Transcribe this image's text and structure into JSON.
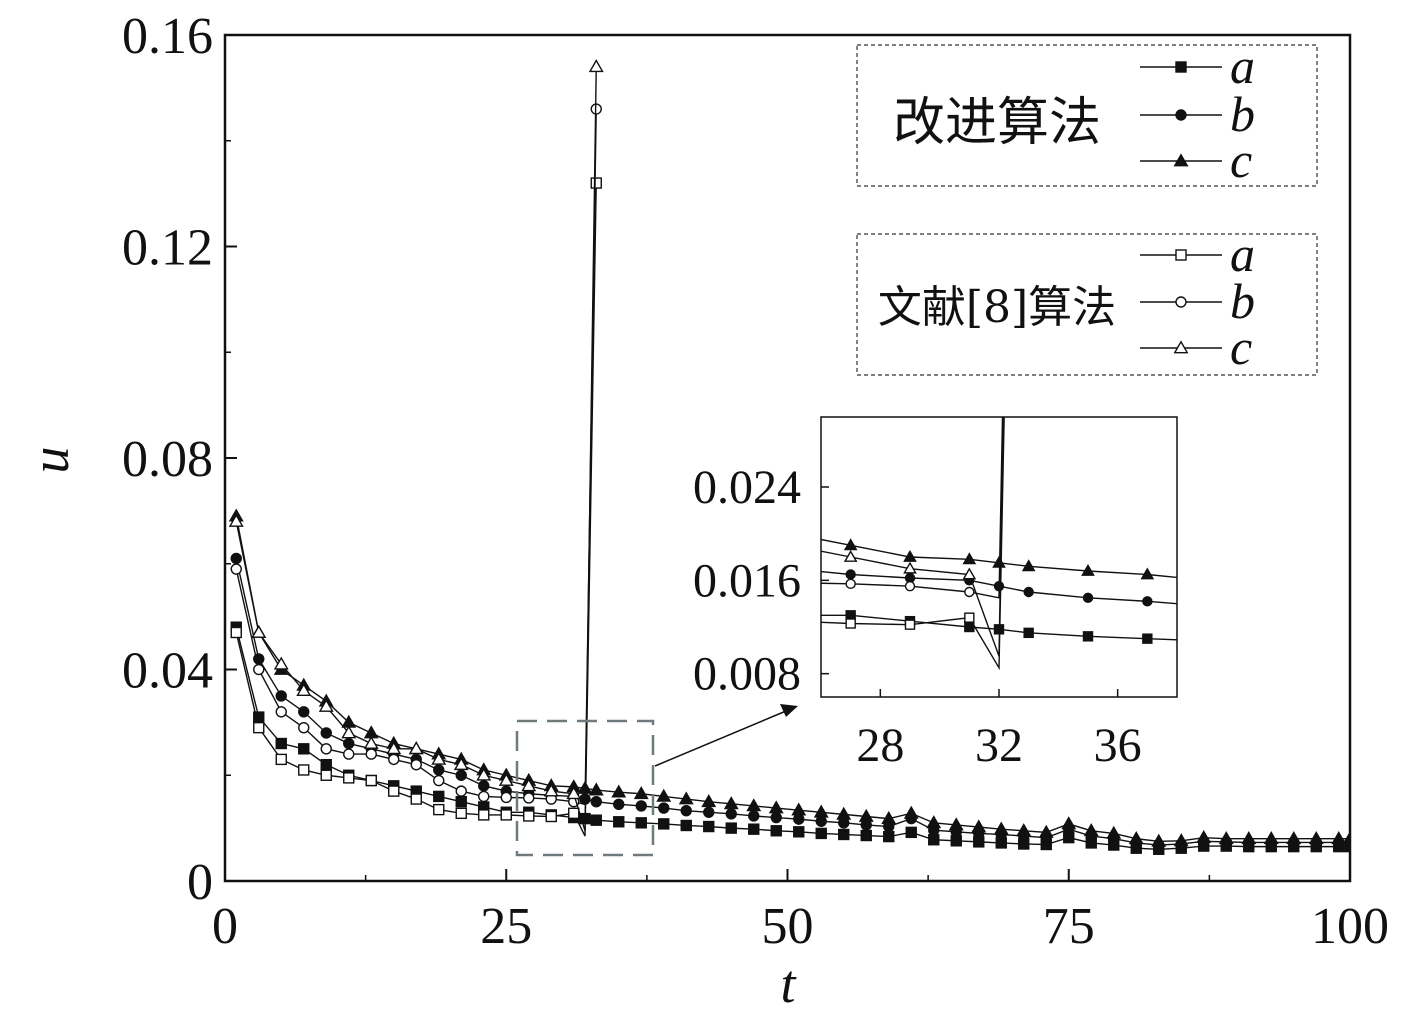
{
  "chart_data": {
    "type": "line",
    "xlabel": "t",
    "ylabel": "u",
    "xlim": [
      0,
      100
    ],
    "ylim": [
      0,
      0.16
    ],
    "x_ticks": [
      "0",
      "25",
      "50",
      "75",
      "100"
    ],
    "y_ticks": [
      "0",
      "0.04",
      "0.08",
      "0.12",
      "0.16"
    ],
    "x": [
      1,
      3,
      5,
      7,
      9,
      11,
      13,
      15,
      17,
      19,
      21,
      23,
      25,
      27,
      29,
      31,
      32,
      33,
      35,
      37,
      39,
      41,
      43,
      45,
      47,
      49,
      51,
      53,
      55,
      57,
      59,
      61,
      63,
      65,
      67,
      69,
      71,
      73,
      75,
      77,
      79,
      81,
      83,
      85,
      87,
      89,
      91,
      93,
      95,
      97,
      99,
      100
    ],
    "series": [
      {
        "name": "a",
        "group": "改进算法",
        "marker": "filled-square",
        "values": [
          0.048,
          0.031,
          0.026,
          0.025,
          0.022,
          0.02,
          0.019,
          0.018,
          0.017,
          0.016,
          0.015,
          0.014,
          0.013,
          0.013,
          0.0125,
          0.012,
          0.0118,
          0.0115,
          0.0112,
          0.011,
          0.0108,
          0.0105,
          0.0103,
          0.01,
          0.0098,
          0.0095,
          0.0093,
          0.009,
          0.0088,
          0.0086,
          0.0084,
          0.0092,
          0.0078,
          0.0076,
          0.0074,
          0.0072,
          0.007,
          0.0069,
          0.0082,
          0.0072,
          0.0068,
          0.0062,
          0.006,
          0.0062,
          0.0066,
          0.0066,
          0.0065,
          0.0065,
          0.0065,
          0.0065,
          0.0065,
          0.0065
        ]
      },
      {
        "name": "b",
        "group": "改进算法",
        "marker": "filled-circle",
        "values": [
          0.061,
          0.042,
          0.035,
          0.032,
          0.028,
          0.026,
          0.025,
          0.024,
          0.023,
          0.021,
          0.02,
          0.018,
          0.017,
          0.0165,
          0.0162,
          0.016,
          0.0155,
          0.015,
          0.0145,
          0.0142,
          0.0138,
          0.0133,
          0.013,
          0.0127,
          0.0123,
          0.012,
          0.0117,
          0.0113,
          0.011,
          0.0106,
          0.0103,
          0.0118,
          0.0096,
          0.0093,
          0.009,
          0.0088,
          0.0085,
          0.0082,
          0.0098,
          0.0085,
          0.008,
          0.0072,
          0.0068,
          0.007,
          0.0075,
          0.0074,
          0.0073,
          0.0073,
          0.0073,
          0.0073,
          0.0073,
          0.0073
        ]
      },
      {
        "name": "c",
        "group": "改进算法",
        "marker": "filled-triangle",
        "values": [
          0.069,
          0.047,
          0.04,
          0.037,
          0.034,
          0.03,
          0.028,
          0.026,
          0.025,
          0.024,
          0.023,
          0.021,
          0.02,
          0.019,
          0.018,
          0.0178,
          0.0175,
          0.0172,
          0.0168,
          0.0165,
          0.016,
          0.0155,
          0.015,
          0.0146,
          0.0142,
          0.0138,
          0.0134,
          0.013,
          0.0126,
          0.0122,
          0.0118,
          0.0128,
          0.011,
          0.0106,
          0.0102,
          0.0098,
          0.0095,
          0.0092,
          0.0108,
          0.0095,
          0.009,
          0.008,
          0.0075,
          0.0076,
          0.0082,
          0.008,
          0.008,
          0.008,
          0.008,
          0.008,
          0.008,
          0.008
        ]
      },
      {
        "name": "a",
        "group": "文献[8]算法",
        "marker": "open-square",
        "values": [
          0.047,
          0.029,
          0.023,
          0.021,
          0.02,
          0.0195,
          0.019,
          0.017,
          0.0155,
          0.0135,
          0.0128,
          0.0125,
          0.0125,
          0.0123,
          0.0122,
          0.0128,
          0.0085,
          0.132,
          null,
          null,
          null,
          null,
          null,
          null,
          null,
          null,
          null,
          null,
          null,
          null,
          null,
          null,
          null,
          null,
          null,
          null,
          null,
          null,
          null,
          null,
          null,
          null,
          null,
          null,
          null,
          null,
          null,
          null,
          null,
          null,
          null,
          null
        ]
      },
      {
        "name": "b",
        "group": "文献[8]算法",
        "marker": "open-circle",
        "values": [
          0.059,
          0.04,
          0.032,
          0.029,
          0.025,
          0.024,
          0.024,
          0.023,
          0.022,
          0.019,
          0.017,
          0.016,
          0.0158,
          0.0157,
          0.0155,
          0.015,
          0.0145,
          0.146,
          null,
          null,
          null,
          null,
          null,
          null,
          null,
          null,
          null,
          null,
          null,
          null,
          null,
          null,
          null,
          null,
          null,
          null,
          null,
          null,
          null,
          null,
          null,
          null,
          null,
          null,
          null,
          null,
          null,
          null,
          null,
          null,
          null,
          null
        ]
      },
      {
        "name": "c",
        "group": "文献[8]算法",
        "marker": "open-triangle",
        "values": [
          0.068,
          0.047,
          0.041,
          0.036,
          0.033,
          0.028,
          0.026,
          0.025,
          0.025,
          0.023,
          0.022,
          0.02,
          0.019,
          0.018,
          0.017,
          0.0165,
          0.0095,
          0.154,
          null,
          null,
          null,
          null,
          null,
          null,
          null,
          null,
          null,
          null,
          null,
          null,
          null,
          null,
          null,
          null,
          null,
          null,
          null,
          null,
          null,
          null,
          null,
          null,
          null,
          null,
          null,
          null,
          null,
          null,
          null,
          null,
          null,
          null
        ]
      }
    ],
    "legend": [
      {
        "title": "改进算法",
        "entries": [
          "a",
          "b",
          "c"
        ]
      },
      {
        "title": "文献[8]算法",
        "entries": [
          "a",
          "b",
          "c"
        ]
      }
    ],
    "legend_position": "top-right",
    "inset": {
      "xlim": [
        26,
        38
      ],
      "ylim": [
        0.006,
        0.03
      ],
      "x_ticks": [
        "28",
        "32",
        "36"
      ],
      "y_ticks": [
        "0.008",
        "0.016",
        "0.024"
      ]
    },
    "grid": false
  }
}
